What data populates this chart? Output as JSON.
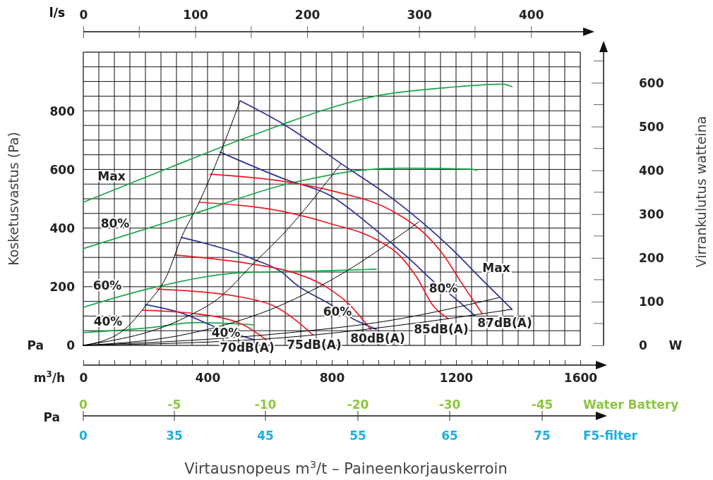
{
  "chart_data": {
    "type": "line",
    "xlabel": "Virtausnopeus m$^{3}$/t – Paineenkorjauskerroin",
    "ylabel": "Kosketusvastus (Pa)",
    "y2label": "Virrankulutus watteina",
    "x2label": "l/s",
    "xlim": [
      0,
      1600
    ],
    "xticks": [
      0,
      {
        "value": 50,
        "label": null
      },
      {
        "value": 100,
        "label": null
      },
      {
        "value": 150,
        "label": null
      },
      {
        "value": 200,
        "label": null
      },
      {
        "value": 250,
        "label": null
      },
      {
        "value": 300,
        "label": null
      },
      {
        "value": 350,
        "label": null
      },
      400,
      {
        "value": 450,
        "label": null
      },
      {
        "value": 500,
        "label": null
      },
      {
        "value": 550,
        "label": null
      },
      {
        "value": 600,
        "label": null
      },
      {
        "value": 650,
        "label": null
      },
      {
        "value": 700,
        "label": null
      },
      {
        "value": 750,
        "label": null
      },
      800,
      {
        "value": 850,
        "label": null
      },
      {
        "value": 900,
        "label": null
      },
      {
        "value": 950,
        "label": null
      },
      {
        "value": 1000,
        "label": null
      },
      {
        "value": 1050,
        "label": null
      },
      {
        "value": 1100,
        "label": null
      },
      {
        "value": 1150,
        "label": null
      },
      1200,
      {
        "value": 1250,
        "label": null
      },
      {
        "value": 1300,
        "label": null
      },
      {
        "value": 1350,
        "label": null
      },
      {
        "value": 1400,
        "label": null
      },
      {
        "value": 1450,
        "label": null
      },
      {
        "value": 1500,
        "label": null
      },
      {
        "value": 1550,
        "label": null
      },
      1600
    ],
    "x2lim": [
      0,
      444
    ],
    "x2ticks": [
      0,
      100,
      200,
      300,
      400
    ],
    "ylim": [
      0,
      1000
    ],
    "yticks": [
      0,
      {
        "value": 50,
        "label": null
      },
      {
        "value": 100,
        "label": null
      },
      {
        "value": 150,
        "label": null
      },
      200,
      {
        "value": 250,
        "label": null
      },
      {
        "value": 300,
        "label": null
      },
      {
        "value": 350,
        "label": null
      },
      400,
      {
        "value": 450,
        "label": null
      },
      {
        "value": 500,
        "label": null
      },
      {
        "value": 550,
        "label": null
      },
      600,
      {
        "value": 650,
        "label": null
      },
      {
        "value": 700,
        "label": null
      },
      {
        "value": 750,
        "label": null
      },
      800,
      {
        "value": 850,
        "label": null
      },
      {
        "value": 900,
        "label": null
      },
      {
        "value": 950,
        "label": null
      },
      {
        "value": 1000,
        "label": null
      }
    ],
    "y2lim": [
      0,
      670
    ],
    "y2ticks": [
      0,
      100,
      200,
      300,
      400,
      500,
      600
    ],
    "grid": true,
    "marker": "none",
    "line_style": "solid",
    "series": [
      {
        "color": "#1aa64b",
        "axis": "y2",
        "x": [
          0,
          284,
          511,
          641,
          793,
          943,
          1170,
          1352,
          1380
        ],
        "values": [
          327,
          408,
          471,
          505,
          542,
          570,
          589,
          597,
          591
        ]
      },
      {
        "color": "#1aa64b",
        "axis": "y2",
        "x": [
          0,
          361,
          641,
          800,
          868,
          1020,
          1248,
          1266
        ],
        "values": [
          221,
          302,
          366,
          390,
          398,
          405,
          403,
          400
        ]
      },
      {
        "color": "#1aa64b",
        "axis": "y2",
        "x": [
          0,
          209,
          511,
          800,
          943
        ],
        "values": [
          87,
          129,
          166,
          171,
          174
        ]
      },
      {
        "color": "#1aa64b",
        "axis": "y2",
        "x": [
          0,
          209,
          361,
          550
        ],
        "values": [
          29,
          40,
          52,
          47
        ]
      },
      {
        "color": "#2e3192",
        "x": [
          505,
          648,
          830,
          1005,
          1095,
          1186,
          1284,
          1380
        ],
        "values": [
          834,
          752,
          620,
          493,
          416,
          329,
          224,
          123
        ]
      },
      {
        "color": "#2e3192",
        "x": [
          441,
          648,
          793,
          943,
          1057,
          1134,
          1180,
          1261
        ],
        "values": [
          659,
          567,
          512,
          392,
          288,
          212,
          175,
          101
        ]
      },
      {
        "color": "#2e3192",
        "x": [
          316,
          550,
          641,
          680,
          800,
          868,
          943
        ],
        "values": [
          368,
          293,
          248,
          212,
          137,
          91,
          55
        ]
      },
      {
        "color": "#2e3192",
        "x": [
          200,
          323,
          420,
          550
        ],
        "values": [
          139,
          108,
          65,
          19
        ]
      },
      {
        "color": "#ed1c24",
        "x": [
          409,
          641,
          793,
          1005,
          1095,
          1157,
          1216,
          1284
        ],
        "values": [
          584,
          560,
          529,
          452,
          385,
          312,
          216,
          108
        ]
      },
      {
        "color": "#ed1c24",
        "x": [
          373,
          641,
          793,
          943,
          1020,
          1073,
          1125,
          1175
        ],
        "values": [
          488,
          457,
          416,
          361,
          305,
          233,
          137,
          91
        ]
      },
      {
        "color": "#ed1c24",
        "x": [
          295,
          550,
          664,
          793,
          852,
          925
        ],
        "values": [
          308,
          276,
          252,
          192,
          144,
          55
        ]
      },
      {
        "color": "#ed1c24",
        "x": [
          236,
          527,
          618,
          686,
          739
        ],
        "values": [
          192,
          161,
          132,
          84,
          36
        ]
      },
      {
        "color": "#ed1c24",
        "x": [
          191,
          361,
          511,
          589
        ],
        "values": [
          120,
          108,
          72,
          19
        ]
      },
      {
        "color": "#000000",
        "x": [
          0,
          125,
          202,
          270,
          316,
          373,
          441,
          505
        ],
        "values": [
          0,
          48,
          137,
          240,
          368,
          488,
          656,
          834
        ]
      },
      {
        "color": "#000000",
        "x": [
          0,
          330,
          436,
          550,
          641,
          830
        ],
        "values": [
          0,
          96,
          161,
          281,
          377,
          620
        ]
      },
      {
        "color": "#000000",
        "x": [
          0,
          345,
          641,
          800,
          1080
        ],
        "values": [
          0,
          41,
          139,
          224,
          421
        ]
      },
      {
        "color": "#000000",
        "x": [
          0,
          641,
          982,
          1339
        ],
        "values": [
          0,
          41,
          84,
          163
        ]
      },
      {
        "color": "#000000",
        "x": [
          0,
          641,
          1005,
          1380
        ],
        "values": [
          0,
          26,
          67,
          123
        ]
      }
    ],
    "annotations": [
      "m$^{3}$/h",
      "Pa",
      "W",
      "Pa",
      "0",
      "-5",
      "-10",
      "-20",
      "-30",
      "-45",
      "Water Battery",
      "0",
      "35",
      "45",
      "55",
      "65",
      "75",
      "F5-filter",
      "Max",
      "80%",
      "60%",
      "40%",
      "Max",
      "80%",
      "60%",
      "40%",
      "87dB(A)",
      "85dB(A)",
      "80dB(A)",
      "75dB(A)",
      "70dB(A)"
    ]
  }
}
